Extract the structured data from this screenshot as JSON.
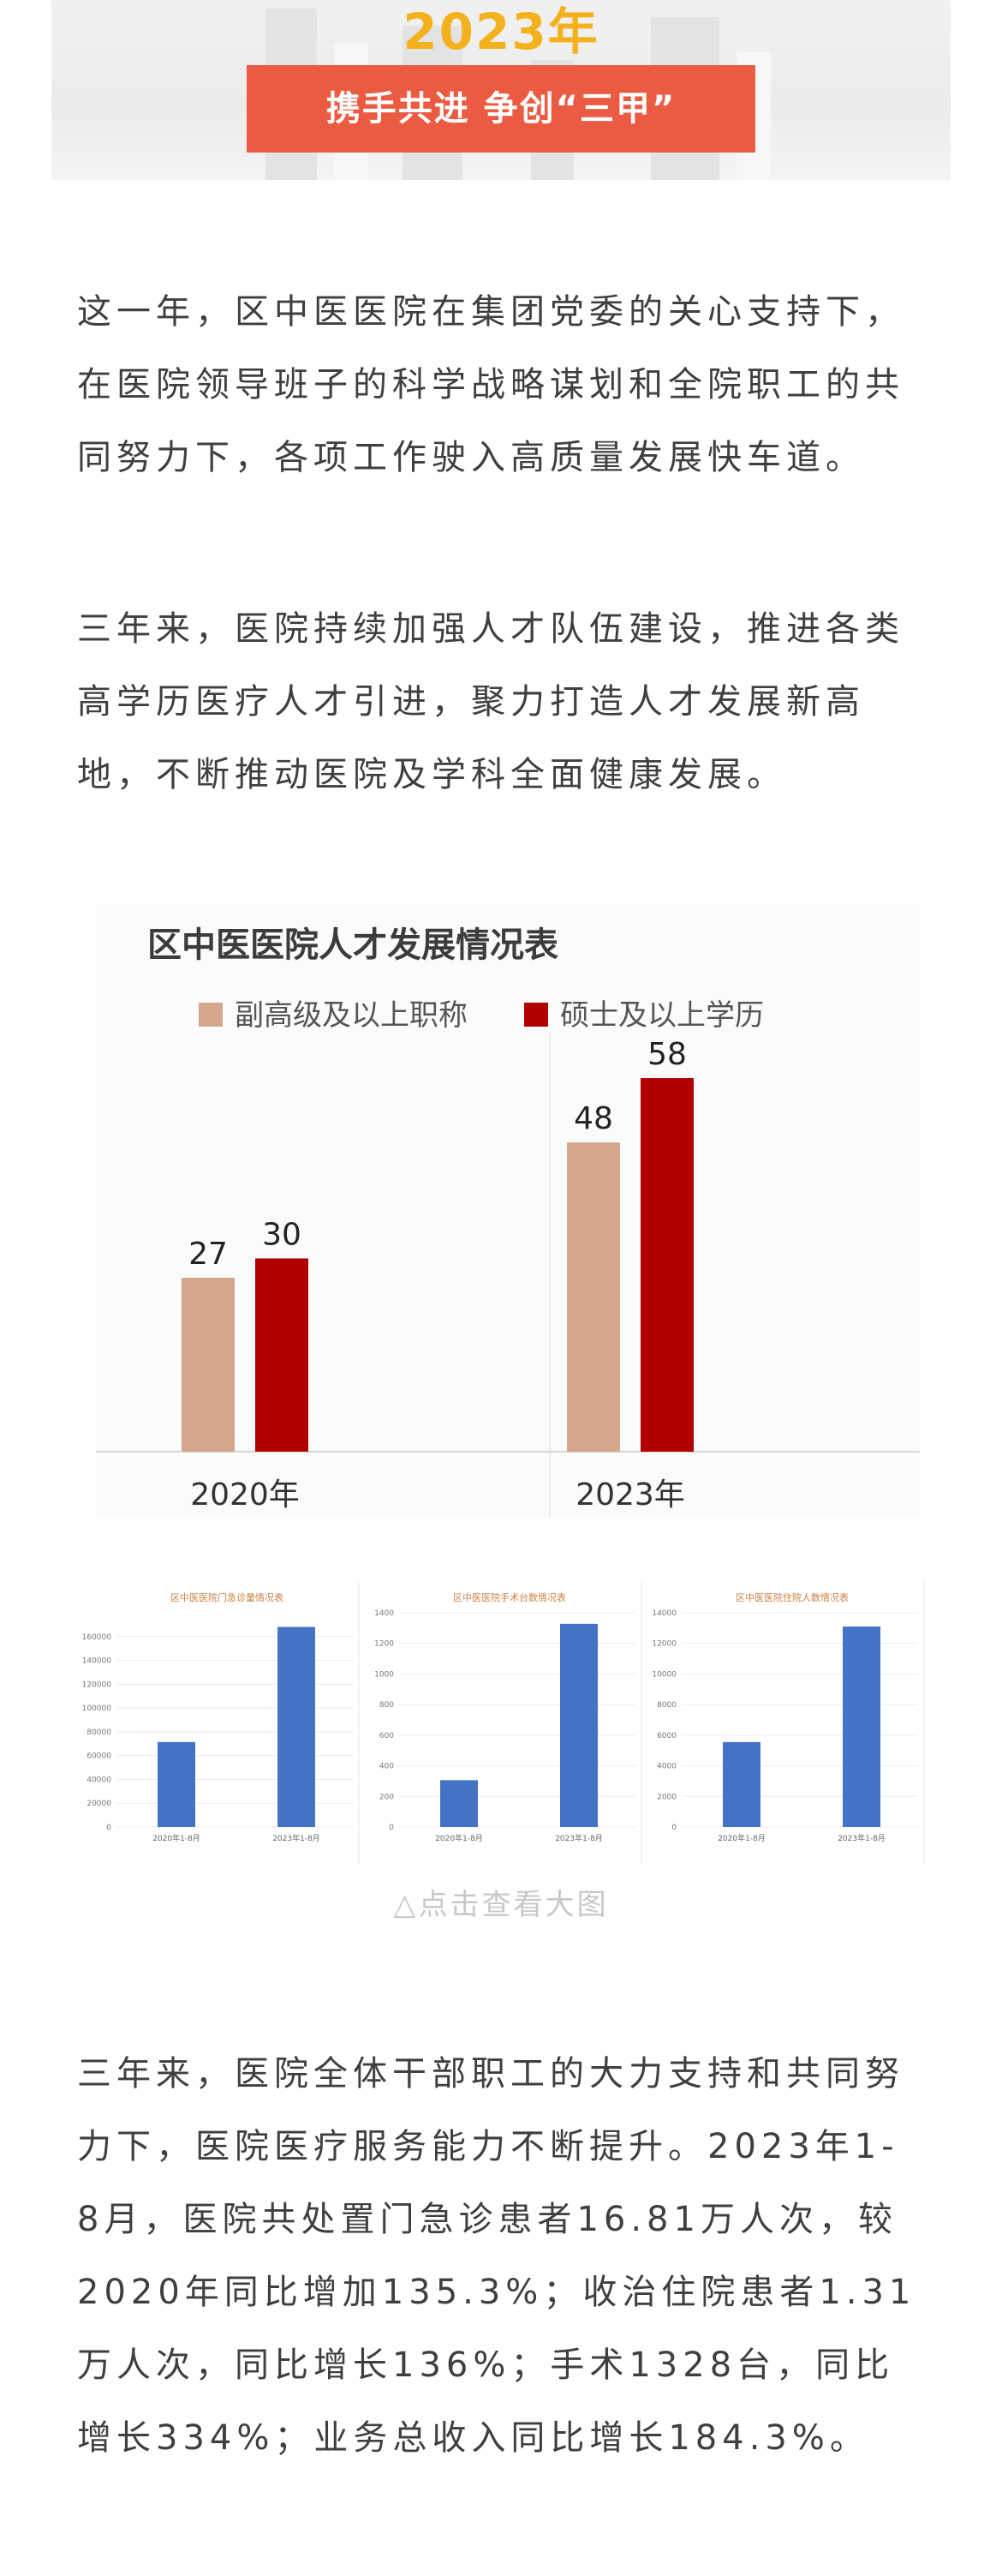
{
  "header": {
    "year": "2023年",
    "slogan": "携手共进 争创“三甲”"
  },
  "paragraphs": {
    "p1": "这一年，区中医医院在集团党委的关心支持下，在医院领导班子的科学战略谋划和全院职工的共同努力下，各项工作驶入高质量发展快车道。",
    "p2": "三年来，医院持续加强人才队伍建设，推进各类高学历医疗人才引进，聚力打造人才发展新高地，不断推动医院及学科全面健康发展。",
    "p3": "三年来，医院全体干部职工的大力支持和共同努力下，医院医疗服务能力不断提升。2023年1-8月，医院共处置门急诊患者16.81万人次，较2020年同比增加135.3%；收治住院患者1.31万人次，同比增长136%；手术1328台，同比增长334%；业务总收入同比增长184.3%。"
  },
  "caption": "△点击查看大图",
  "colors": {
    "accent_yellow": "#f4b11e",
    "ribbon_red": "#ea5b42",
    "series_tan": "#d4a78d",
    "series_red": "#b20000",
    "small_bar_blue": "#4472c4"
  },
  "chart_data": [
    {
      "type": "bar",
      "title": "区中医医院人才发展情况表",
      "categories": [
        "2020年",
        "2023年"
      ],
      "series": [
        {
          "name": "副高级及以上职称",
          "values": [
            27,
            48
          ],
          "color": "#d4a78d"
        },
        {
          "name": "硕士及以上学历",
          "values": [
            30,
            58
          ],
          "color": "#b20000"
        }
      ],
      "legend": "top",
      "ylim": [
        0,
        80
      ]
    },
    {
      "type": "bar",
      "title": "区中医医院门急诊量情况表",
      "categories": [
        "2020年1-8月",
        "2023年1-8月"
      ],
      "values": [
        71400,
        168100
      ],
      "yticks": [
        "0",
        "20000",
        "40000",
        "60000",
        "80000",
        "100000",
        "120000",
        "140000",
        "160000"
      ],
      "ylim": [
        0,
        180000
      ],
      "grid": true
    },
    {
      "type": "bar",
      "title": "区中医医院手术台数情况表",
      "categories": [
        "2020年1-8月",
        "2023年1-8月"
      ],
      "values": [
        306,
        1328
      ],
      "yticks": [
        "0",
        "200",
        "400",
        "600",
        "800",
        "1000",
        "1200",
        "1400"
      ],
      "ylim": [
        0,
        1400
      ],
      "grid": true
    },
    {
      "type": "bar",
      "title": "区中医医院住院人数情况表",
      "categories": [
        "2020年1-8月",
        "2023年1-8月"
      ],
      "values": [
        5550,
        13100
      ],
      "yticks": [
        "0",
        "2000",
        "4000",
        "6000",
        "8000",
        "10000",
        "12000",
        "14000"
      ],
      "ylim": [
        0,
        14000
      ],
      "grid": true
    }
  ]
}
